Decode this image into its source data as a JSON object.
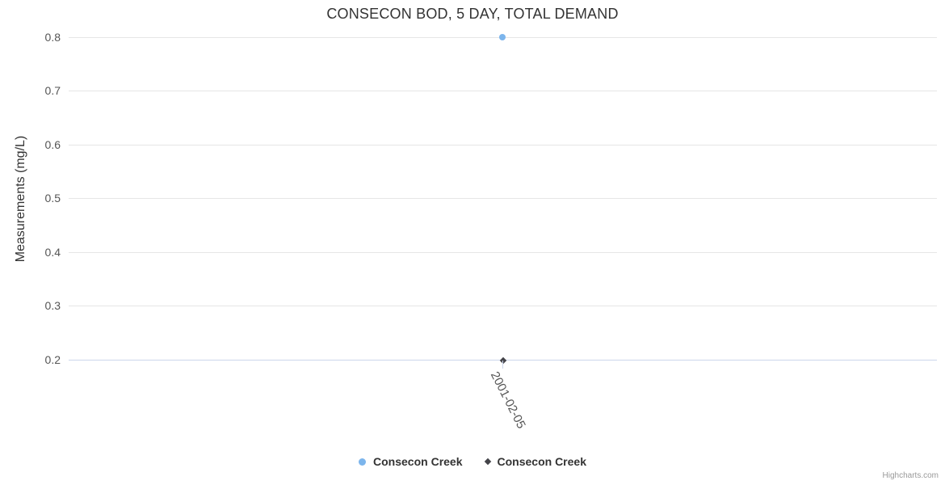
{
  "chart_data": {
    "type": "scatter",
    "title": "CONSECON BOD, 5 DAY, TOTAL DEMAND",
    "xlabel": "",
    "ylabel": "Measurements (mg/L)",
    "categories": [
      "2001-02-05"
    ],
    "series": [
      {
        "name": "Consecon Creek",
        "marker": "circle",
        "color": "#7cb5ec",
        "values": [
          0.8
        ]
      },
      {
        "name": "Consecon Creek",
        "marker": "diamond",
        "color": "#434348",
        "values": [
          0.2
        ]
      }
    ],
    "ylim": [
      0.2,
      0.8
    ],
    "yticks": [
      0.2,
      0.3,
      0.4,
      0.5,
      0.6,
      0.7,
      0.8
    ],
    "grid": true,
    "gridline_color": "#e6e6e6",
    "axis_line_color": "#ccd6eb",
    "legend_position": "bottom-center"
  },
  "legend": {
    "items": [
      {
        "label": "Consecon Creek",
        "marker": "circle",
        "color": "#7cb5ec"
      },
      {
        "label": "Consecon Creek",
        "marker": "diamond",
        "color": "#434348"
      }
    ]
  },
  "credits": {
    "label": "Highcharts.com"
  }
}
